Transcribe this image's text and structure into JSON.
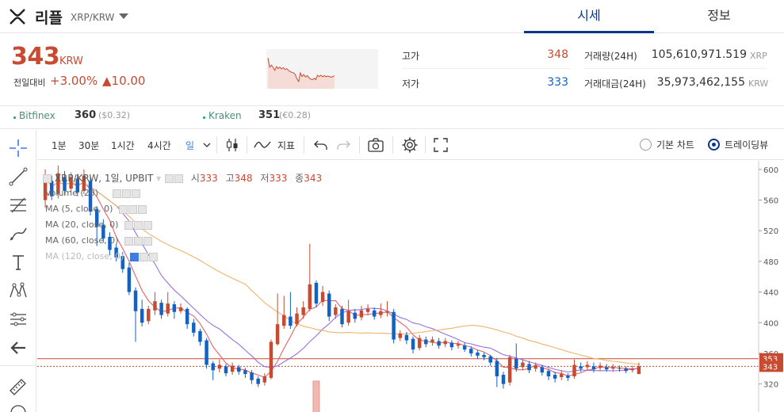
{
  "header": {
    "coin_name": "리플",
    "pair": "XRP/KRW",
    "tabs": [
      "시세",
      "정보"
    ]
  },
  "ticker": {
    "price": "343",
    "unit": "KRW",
    "change_label": "전일대비",
    "change_pct": "+3.00%",
    "change_abs": "▲10.00",
    "high_label": "고가",
    "high": "348",
    "low_label": "저가",
    "low": "333",
    "volume_label": "거래량(24H)",
    "volume": "105,610,971.519",
    "volume_unit": "XRP",
    "value_label": "거래대금(24H)",
    "value": "35,973,462,155",
    "value_unit": "KRW"
  },
  "exchanges": [
    {
      "name": "Bitfinex",
      "price": "360",
      "sub": "($0.32)"
    },
    {
      "name": "Kraken",
      "price": "351",
      "sub": "(€0.28)"
    }
  ],
  "toolbar": {
    "intervals": [
      "1분",
      "30분",
      "1시간",
      "4시간",
      "일"
    ],
    "indicator_label": "지표",
    "basic_chart": "기본 차트",
    "trading_view": "트레이딩뷰"
  },
  "legend": {
    "symbol": "XRP/KRW, 1일, UPBIT",
    "o_label": "시",
    "o": "333",
    "h_label": "고",
    "h": "348",
    "l_label": "저",
    "l": "333",
    "c_label": "종",
    "c": "343",
    "volume": "Volume (20)",
    "ma5": "MA (5, close, 0)",
    "ma20": "MA (20, close, 0)",
    "ma60": "MA (60, close, 0)",
    "ma120": "MA (120, close, 0)"
  },
  "colors": {
    "up": "#c84a31",
    "down": "#1261c4",
    "ma5": "#e26565",
    "ma20": "#9b6fe0",
    "ma60": "#f0b46a",
    "brand": "#093687"
  },
  "chart_data": {
    "type": "candlestick",
    "y_ticks": [
      "600",
      "560",
      "520",
      "480",
      "440",
      "400",
      "360",
      "320"
    ],
    "ylim": [
      300,
      605
    ],
    "price_markers": {
      "high": "353",
      "current": "343"
    },
    "candles": [
      {
        "o": 560,
        "c": 590,
        "h": 600,
        "l": 550
      },
      {
        "o": 585,
        "c": 565,
        "h": 592,
        "l": 560
      },
      {
        "o": 568,
        "c": 595,
        "h": 605,
        "l": 562
      },
      {
        "o": 590,
        "c": 572,
        "h": 598,
        "l": 566
      },
      {
        "o": 575,
        "c": 590,
        "h": 596,
        "l": 570
      },
      {
        "o": 588,
        "c": 570,
        "h": 594,
        "l": 565
      },
      {
        "o": 572,
        "c": 592,
        "h": 600,
        "l": 568
      },
      {
        "o": 585,
        "c": 545,
        "h": 590,
        "l": 540
      },
      {
        "o": 548,
        "c": 525,
        "h": 552,
        "l": 500
      },
      {
        "o": 528,
        "c": 510,
        "h": 535,
        "l": 505
      },
      {
        "o": 512,
        "c": 495,
        "h": 518,
        "l": 488
      },
      {
        "o": 498,
        "c": 485,
        "h": 503,
        "l": 480
      },
      {
        "o": 487,
        "c": 470,
        "h": 492,
        "l": 465
      },
      {
        "o": 472,
        "c": 440,
        "h": 478,
        "l": 436
      },
      {
        "o": 442,
        "c": 415,
        "h": 446,
        "l": 375
      },
      {
        "o": 418,
        "c": 400,
        "h": 430,
        "l": 395
      },
      {
        "o": 402,
        "c": 418,
        "h": 422,
        "l": 398
      },
      {
        "o": 416,
        "c": 428,
        "h": 440,
        "l": 410
      },
      {
        "o": 426,
        "c": 410,
        "h": 430,
        "l": 405
      },
      {
        "o": 412,
        "c": 425,
        "h": 440,
        "l": 408
      },
      {
        "o": 424,
        "c": 414,
        "h": 428,
        "l": 405
      },
      {
        "o": 415,
        "c": 420,
        "h": 425,
        "l": 412
      },
      {
        "o": 418,
        "c": 398,
        "h": 420,
        "l": 392
      },
      {
        "o": 400,
        "c": 387,
        "h": 405,
        "l": 382
      },
      {
        "o": 389,
        "c": 375,
        "h": 392,
        "l": 370
      },
      {
        "o": 377,
        "c": 345,
        "h": 380,
        "l": 340
      },
      {
        "o": 347,
        "c": 338,
        "h": 350,
        "l": 325
      },
      {
        "o": 340,
        "c": 345,
        "h": 352,
        "l": 335
      },
      {
        "o": 343,
        "c": 334,
        "h": 346,
        "l": 330
      },
      {
        "o": 336,
        "c": 344,
        "h": 348,
        "l": 332
      },
      {
        "o": 342,
        "c": 336,
        "h": 345,
        "l": 332
      },
      {
        "o": 338,
        "c": 333,
        "h": 341,
        "l": 328
      },
      {
        "o": 335,
        "c": 325,
        "h": 338,
        "l": 320
      },
      {
        "o": 327,
        "c": 320,
        "h": 330,
        "l": 316
      },
      {
        "o": 322,
        "c": 330,
        "h": 334,
        "l": 318
      },
      {
        "o": 328,
        "c": 375,
        "h": 378,
        "l": 326
      },
      {
        "o": 372,
        "c": 398,
        "h": 438,
        "l": 370
      },
      {
        "o": 396,
        "c": 410,
        "h": 435,
        "l": 392
      },
      {
        "o": 408,
        "c": 396,
        "h": 440,
        "l": 392
      },
      {
        "o": 398,
        "c": 412,
        "h": 420,
        "l": 395
      },
      {
        "o": 410,
        "c": 420,
        "h": 428,
        "l": 405
      },
      {
        "o": 418,
        "c": 450,
        "h": 503,
        "l": 415
      },
      {
        "o": 452,
        "c": 425,
        "h": 455,
        "l": 420
      },
      {
        "o": 427,
        "c": 440,
        "h": 448,
        "l": 422
      },
      {
        "o": 438,
        "c": 408,
        "h": 442,
        "l": 402
      },
      {
        "o": 410,
        "c": 420,
        "h": 424,
        "l": 405
      },
      {
        "o": 418,
        "c": 398,
        "h": 422,
        "l": 394
      },
      {
        "o": 400,
        "c": 415,
        "h": 430,
        "l": 396
      },
      {
        "o": 413,
        "c": 405,
        "h": 418,
        "l": 400
      },
      {
        "o": 407,
        "c": 416,
        "h": 422,
        "l": 403
      },
      {
        "o": 414,
        "c": 418,
        "h": 424,
        "l": 410
      },
      {
        "o": 416,
        "c": 408,
        "h": 420,
        "l": 404
      },
      {
        "o": 410,
        "c": 415,
        "h": 425,
        "l": 406
      },
      {
        "o": 413,
        "c": 415,
        "h": 428,
        "l": 408
      },
      {
        "o": 414,
        "c": 378,
        "h": 418,
        "l": 373
      },
      {
        "o": 380,
        "c": 386,
        "h": 390,
        "l": 376
      },
      {
        "o": 384,
        "c": 377,
        "h": 388,
        "l": 372
      },
      {
        "o": 379,
        "c": 365,
        "h": 382,
        "l": 360
      },
      {
        "o": 367,
        "c": 380,
        "h": 384,
        "l": 364
      },
      {
        "o": 378,
        "c": 372,
        "h": 382,
        "l": 368
      },
      {
        "o": 374,
        "c": 378,
        "h": 382,
        "l": 370
      },
      {
        "o": 376,
        "c": 370,
        "h": 380,
        "l": 366
      },
      {
        "o": 372,
        "c": 376,
        "h": 380,
        "l": 368
      },
      {
        "o": 374,
        "c": 368,
        "h": 377,
        "l": 364
      },
      {
        "o": 370,
        "c": 372,
        "h": 376,
        "l": 366
      },
      {
        "o": 370,
        "c": 365,
        "h": 374,
        "l": 362
      },
      {
        "o": 366,
        "c": 360,
        "h": 369,
        "l": 356
      },
      {
        "o": 361,
        "c": 357,
        "h": 364,
        "l": 353
      },
      {
        "o": 358,
        "c": 355,
        "h": 361,
        "l": 351
      },
      {
        "o": 356,
        "c": 348,
        "h": 358,
        "l": 344
      },
      {
        "o": 350,
        "c": 330,
        "h": 354,
        "l": 316
      },
      {
        "o": 332,
        "c": 320,
        "h": 336,
        "l": 314
      },
      {
        "o": 322,
        "c": 355,
        "h": 358,
        "l": 318
      },
      {
        "o": 353,
        "c": 340,
        "h": 373,
        "l": 336
      },
      {
        "o": 342,
        "c": 348,
        "h": 352,
        "l": 338
      },
      {
        "o": 346,
        "c": 338,
        "h": 350,
        "l": 334
      },
      {
        "o": 340,
        "c": 344,
        "h": 348,
        "l": 336
      },
      {
        "o": 342,
        "c": 335,
        "h": 345,
        "l": 331
      },
      {
        "o": 337,
        "c": 330,
        "h": 340,
        "l": 325
      },
      {
        "o": 332,
        "c": 327,
        "h": 336,
        "l": 322
      },
      {
        "o": 329,
        "c": 333,
        "h": 338,
        "l": 325
      },
      {
        "o": 331,
        "c": 328,
        "h": 334,
        "l": 324
      },
      {
        "o": 330,
        "c": 345,
        "h": 352,
        "l": 327
      },
      {
        "o": 343,
        "c": 340,
        "h": 348,
        "l": 336
      },
      {
        "o": 342,
        "c": 345,
        "h": 350,
        "l": 338
      },
      {
        "o": 343,
        "c": 339,
        "h": 348,
        "l": 335
      },
      {
        "o": 341,
        "c": 344,
        "h": 348,
        "l": 337
      },
      {
        "o": 342,
        "c": 339,
        "h": 346,
        "l": 336
      },
      {
        "o": 340,
        "c": 342,
        "h": 346,
        "l": 336
      },
      {
        "o": 341,
        "c": 340,
        "h": 344,
        "l": 336
      },
      {
        "o": 340,
        "c": 337,
        "h": 343,
        "l": 334
      },
      {
        "o": 338,
        "c": 340,
        "h": 344,
        "l": 335
      },
      {
        "o": 333,
        "c": 343,
        "h": 348,
        "l": 333
      }
    ]
  }
}
